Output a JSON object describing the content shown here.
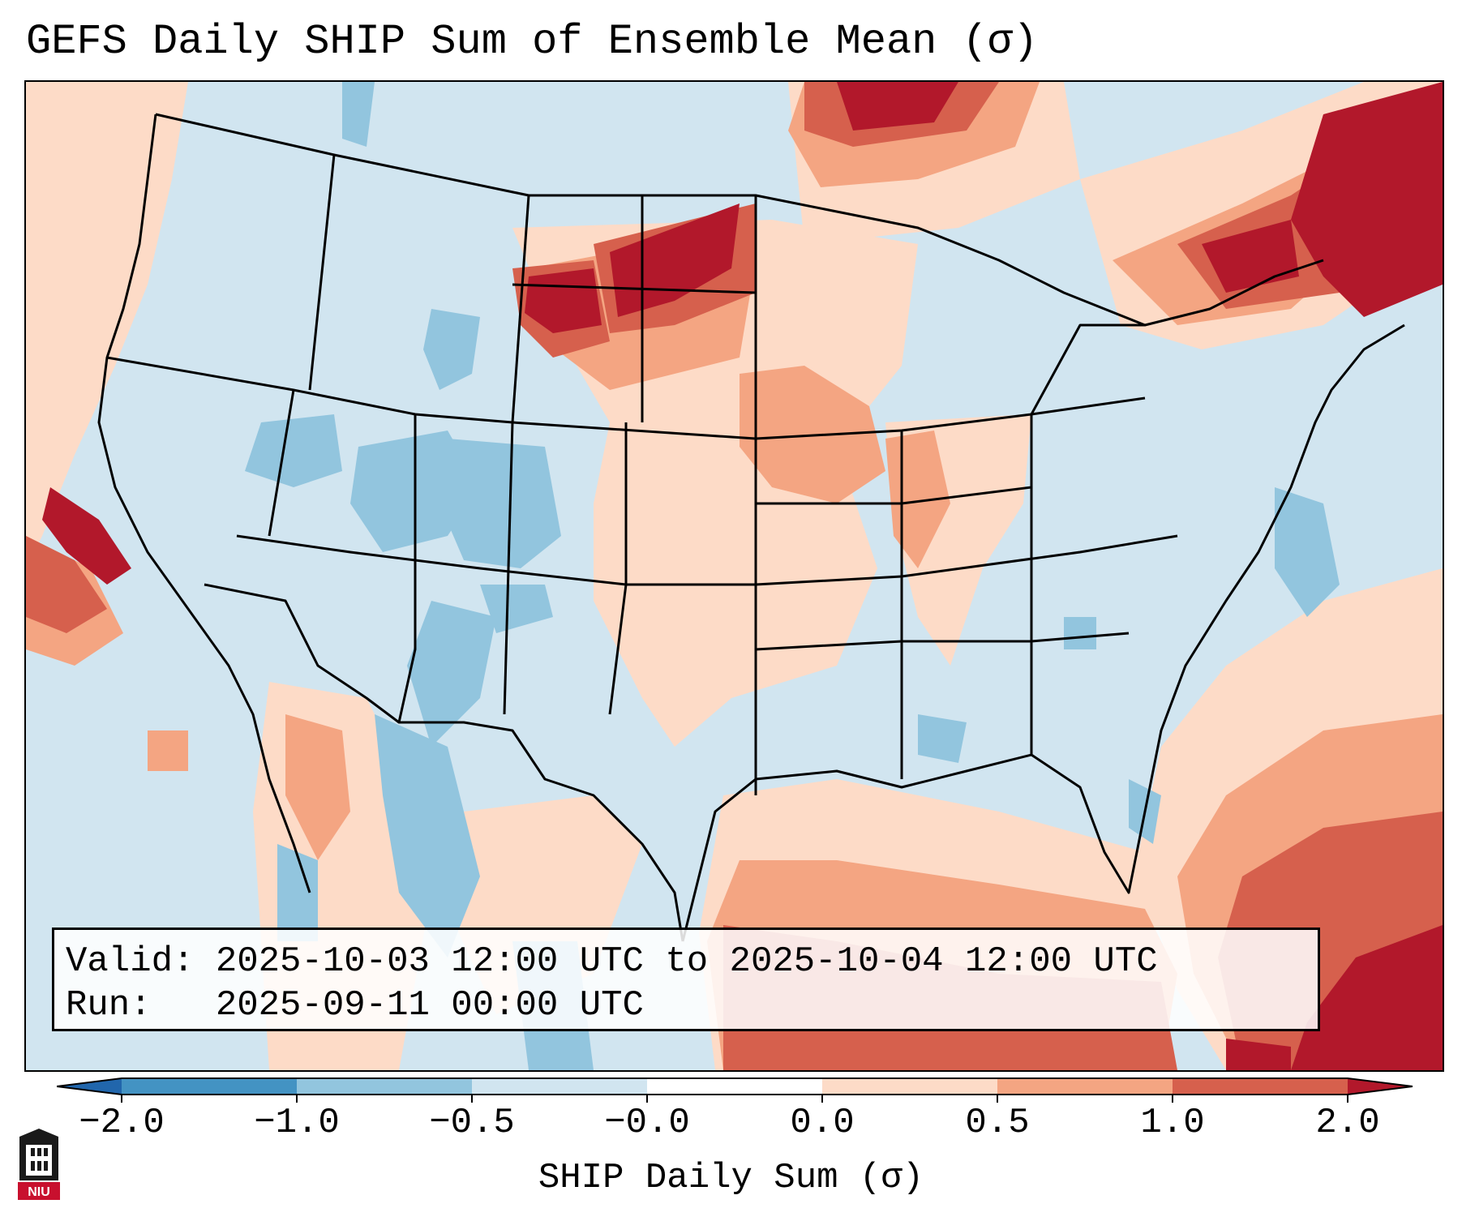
{
  "title": "GEFS Daily SHIP Sum of Ensemble Mean (σ)",
  "info": {
    "valid_label": "Valid:",
    "valid_value": "2025-10-03 12:00 UTC to 2025-10-04 12:00 UTC",
    "run_label": "Run:",
    "run_value": "2025-09-11 00:00 UTC"
  },
  "colorbar": {
    "label": "SHIP Daily Sum (σ)",
    "ticks": [
      "−2.0",
      "−1.0",
      "−0.5",
      "−0.0",
      "0.0",
      "0.5",
      "1.0",
      "2.0"
    ],
    "colors": {
      "below": "#2166ac",
      "b1": "#4393c3",
      "b2": "#92c5de",
      "b3": "#d1e5f0",
      "b4": "#ffffff",
      "b5": "#fddbc7",
      "b6": "#f4a582",
      "b7": "#d6604d",
      "above": "#b2182b"
    }
  },
  "logo": {
    "text": "NIU"
  }
}
